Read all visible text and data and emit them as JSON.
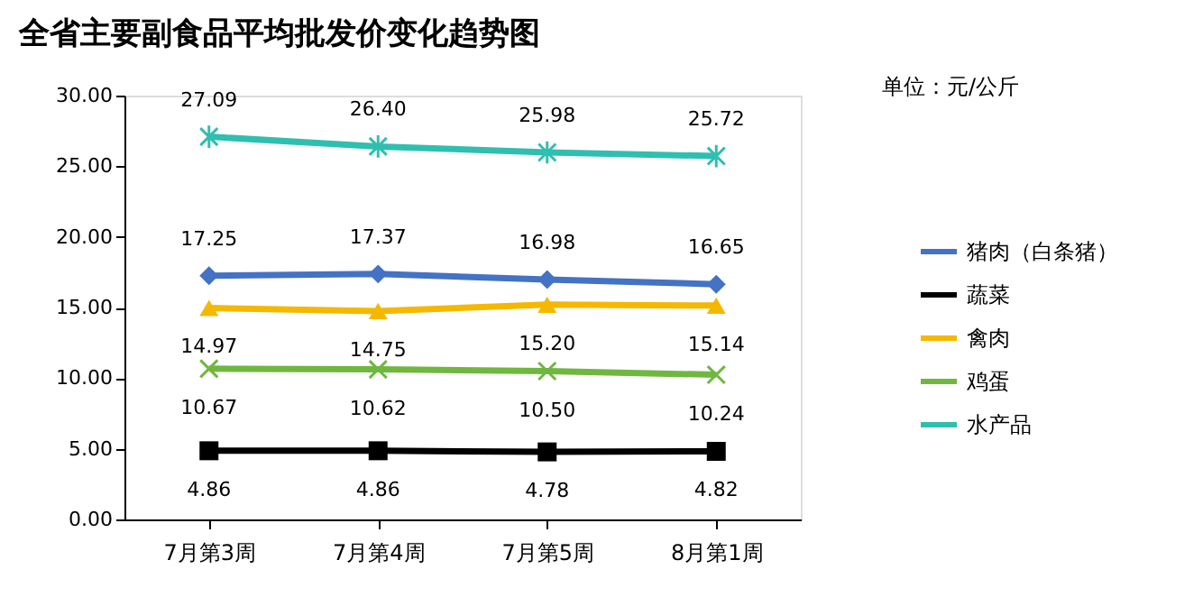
{
  "chart_data": {
    "type": "line",
    "title": "全省主要副食品平均批发价变化趋势图",
    "categories": [
      "7月第3周",
      "7月第4周",
      "7月第5周",
      "8月第1周"
    ],
    "series": [
      {
        "name": "猪肉（白条猪）",
        "color": "#4472c4",
        "marker": "diamond",
        "values": [
          17.25,
          17.37,
          16.98,
          16.65
        ],
        "value_labels": [
          "17.25",
          "17.37",
          "16.98",
          "16.65"
        ]
      },
      {
        "name": "蔬菜",
        "color": "#000000",
        "marker": "square",
        "values": [
          4.86,
          4.86,
          4.78,
          4.82
        ],
        "value_labels": [
          "4.86",
          "4.86",
          "4.78",
          "4.82"
        ]
      },
      {
        "name": "禽肉",
        "color": "#f5b800",
        "marker": "triangle",
        "values": [
          14.97,
          14.75,
          15.2,
          15.14
        ],
        "value_labels": [
          "14.97",
          "14.75",
          "15.20",
          "15.14"
        ]
      },
      {
        "name": "鸡蛋",
        "color": "#70b73f",
        "marker": "cross",
        "values": [
          10.67,
          10.62,
          10.5,
          10.24
        ],
        "value_labels": [
          "10.67",
          "10.62",
          "10.50",
          "10.24"
        ]
      },
      {
        "name": "水产品",
        "color": "#2fbfb0",
        "marker": "cross",
        "values": [
          27.09,
          26.4,
          25.98,
          25.72
        ],
        "value_labels": [
          "27.09",
          "26.40",
          "25.98",
          "25.72"
        ]
      }
    ],
    "ylim": [
      0,
      30
    ],
    "yticks": [
      {
        "value": 0,
        "label": "0.00"
      },
      {
        "value": 5,
        "label": "5.00"
      },
      {
        "value": 10,
        "label": "10.00"
      },
      {
        "value": 15,
        "label": "15.00"
      },
      {
        "value": 20,
        "label": "20.00"
      },
      {
        "value": 25,
        "label": "25.00"
      },
      {
        "value": 30,
        "label": "30.00"
      }
    ],
    "annotations": [
      "单位：元/公斤"
    ],
    "legend": "right",
    "grid": false
  }
}
